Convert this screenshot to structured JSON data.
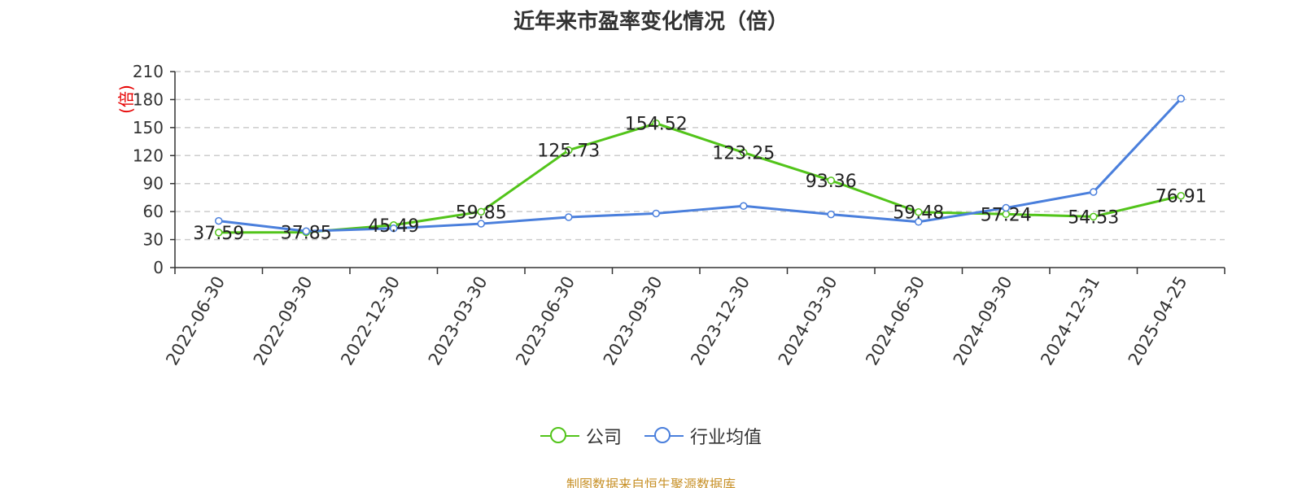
{
  "title": "近年来市盈率变化情况（倍）",
  "source": "制图数据来自恒生聚源数据库",
  "colors": {
    "company": "#52c41a",
    "industry": "#4a7fdc",
    "grid": "#cccccc",
    "axis": "#333333",
    "unit": "#e60000",
    "source": "#c8922a"
  },
  "legend": {
    "company": "公司",
    "industry": "行业均值"
  },
  "chart_data": {
    "type": "line",
    "title": "近年来市盈率变化情况（倍）",
    "ylabel": "(倍)",
    "xlabel": "",
    "ylim": [
      0,
      210
    ],
    "yticks": [
      0,
      30,
      60,
      90,
      120,
      150,
      180,
      210
    ],
    "grid": true,
    "legend_position": "bottom-center",
    "categories": [
      "2022-06-30",
      "2022-09-30",
      "2022-12-30",
      "2023-03-30",
      "2023-06-30",
      "2023-09-30",
      "2023-12-30",
      "2024-03-30",
      "2024-06-30",
      "2024-09-30",
      "2024-12-31",
      "2025-04-25"
    ],
    "series": [
      {
        "name": "公司",
        "values": [
          37.59,
          37.85,
          45.49,
          59.85,
          125.73,
          154.52,
          123.25,
          93.36,
          59.48,
          57.24,
          54.53,
          76.91
        ],
        "labels": [
          "37.59",
          "37.85",
          "45.49",
          "59.85",
          "125.73",
          "154.52",
          "123.25",
          "93.36",
          "59.48",
          "57.24",
          "54.53",
          "76.91"
        ]
      },
      {
        "name": "行业均值",
        "values": [
          50,
          39,
          42,
          47,
          54,
          58,
          66,
          57,
          49,
          64,
          81,
          181
        ]
      }
    ]
  }
}
